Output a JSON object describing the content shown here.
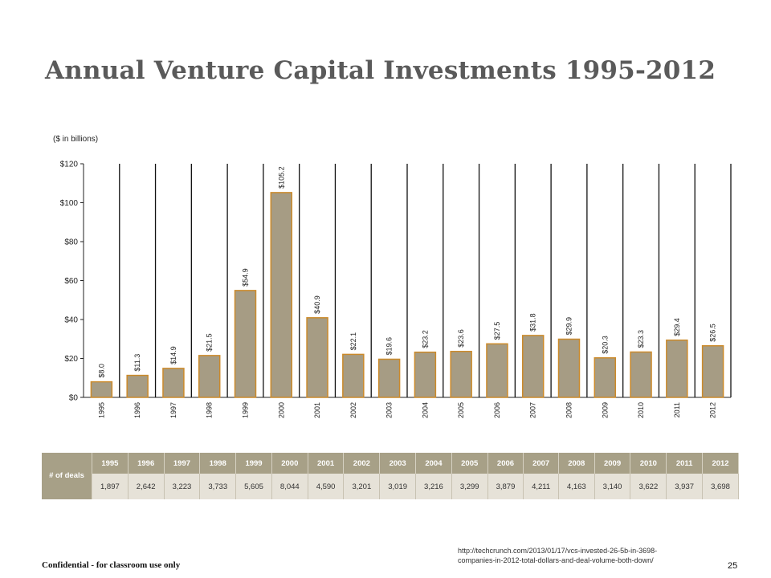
{
  "page": {
    "title": "Annual Venture Capital Investments 1995-2012",
    "footer": "Confidential - for classroom use only",
    "page_number": "25",
    "source_url_line1": "http://techcrunch.com/2013/01/17/vcs-invested-26-5b-in-3698-",
    "source_url_line2": "companies-in-2012-total-dollars-and-deal-volume-both-down/"
  },
  "colors": {
    "bar_fill": "#a69c84",
    "bar_stroke": "#cc8a2a",
    "divider": "#111111",
    "table_header": "#a7a087",
    "table_values": "#e6e2d8"
  },
  "chart_data": {
    "type": "bar",
    "unit_label": "($ in billions)",
    "categories": [
      "1995",
      "1996",
      "1997",
      "1998",
      "1999",
      "2000",
      "2001",
      "2002",
      "2003",
      "2004",
      "2005",
      "2006",
      "2007",
      "2008",
      "2009",
      "2010",
      "2011",
      "2012"
    ],
    "values": [
      8.0,
      11.3,
      14.9,
      21.5,
      54.9,
      105.2,
      40.9,
      22.1,
      19.6,
      23.2,
      23.6,
      27.5,
      31.8,
      29.9,
      20.3,
      23.3,
      29.4,
      26.5
    ],
    "data_labels": [
      "$8.0",
      "$11.3",
      "$14.9",
      "$21.5",
      "$54.9",
      "$105.2",
      "$40.9",
      "$22.1",
      "$19.6",
      "$23.2",
      "$23.6",
      "$27.5",
      "$31.8",
      "$29.9",
      "$20.3",
      "$23.3",
      "$29.4",
      "$26.5"
    ],
    "y_ticks": [
      "$0",
      "$20",
      "$40",
      "$60",
      "$80",
      "$100",
      "$120"
    ],
    "ylim": [
      0,
      120
    ],
    "grid": false
  },
  "deals_table": {
    "row_label": "# of deals",
    "years": [
      "1995",
      "1996",
      "1997",
      "1998",
      "1999",
      "2000",
      "2001",
      "2002",
      "2003",
      "2004",
      "2005",
      "2006",
      "2007",
      "2008",
      "2009",
      "2010",
      "2011",
      "2012"
    ],
    "deals": [
      "1,897",
      "2,642",
      "3,223",
      "3,733",
      "5,605",
      "8,044",
      "4,590",
      "3,201",
      "3,019",
      "3,216",
      "3,299",
      "3,879",
      "4,211",
      "4,163",
      "3,140",
      "3,622",
      "3,937",
      "3,698"
    ]
  }
}
